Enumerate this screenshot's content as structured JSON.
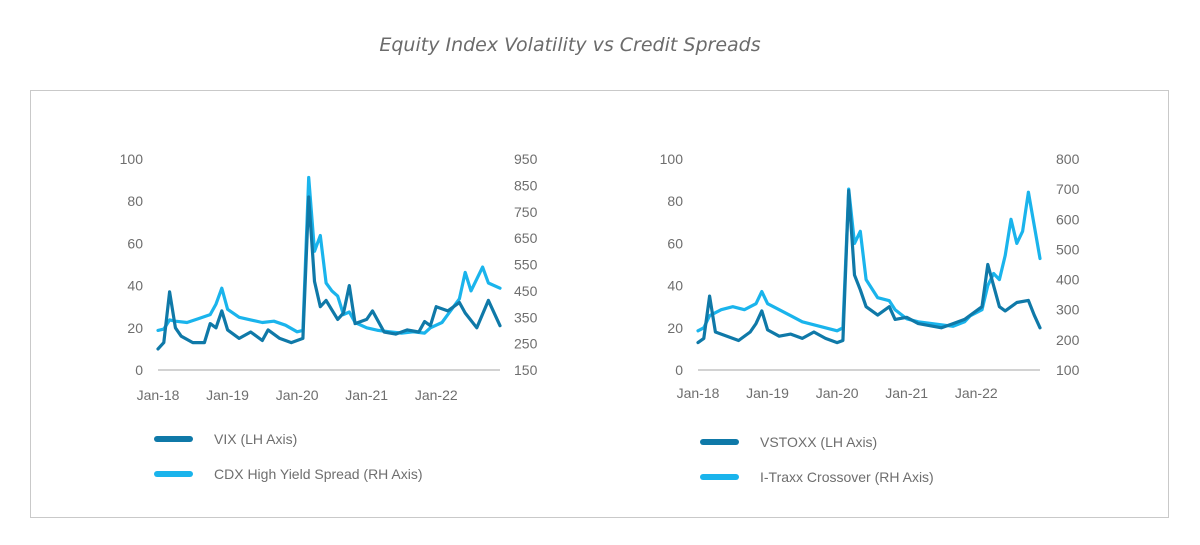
{
  "title": "Equity Index Volatility vs Credit Spreads",
  "colors": {
    "dark_series": "#0f79a8",
    "light_series": "#1ab4ec",
    "axis": "#c4c4c4",
    "text": "#6e6e6e"
  },
  "chart_data": [
    {
      "type": "line",
      "x_ticks": [
        "Jan-18",
        "Jan-19",
        "Jan-20",
        "Jan-21",
        "Jan-22"
      ],
      "y_left_ticks": [
        "0",
        "20",
        "40",
        "60",
        "80",
        "100"
      ],
      "y_right_ticks": [
        "150",
        "250",
        "350",
        "450",
        "550",
        "650",
        "750",
        "850",
        "950"
      ],
      "ylim_left": [
        0,
        100
      ],
      "ylim_right": [
        150,
        950
      ],
      "x_range": [
        "Jan-18",
        "Dec-22"
      ],
      "series": [
        {
          "name": "VIX (LH Axis)",
          "axis": "left",
          "color": "#0f79a8",
          "x": [
            "Jan-18",
            "Feb-18",
            "Mar-18",
            "Apr-18",
            "May-18",
            "Jul-18",
            "Sep-18",
            "Oct-18",
            "Nov-18",
            "Dec-18",
            "Jan-19",
            "Mar-19",
            "May-19",
            "Jul-19",
            "Aug-19",
            "Oct-19",
            "Dec-19",
            "Feb-20",
            "Mar-20",
            "Apr-20",
            "May-20",
            "Jun-20",
            "Aug-20",
            "Sep-20",
            "Oct-20",
            "Nov-20",
            "Jan-21",
            "Feb-21",
            "Apr-21",
            "Jun-21",
            "Aug-21",
            "Oct-21",
            "Nov-21",
            "Dec-21",
            "Jan-22",
            "Mar-22",
            "May-22",
            "Jun-22",
            "Aug-22",
            "Oct-22",
            "Dec-22"
          ],
          "y": [
            10,
            13,
            37,
            20,
            16,
            13,
            13,
            22,
            20,
            28,
            19,
            15,
            18,
            14,
            19,
            15,
            13,
            15,
            82,
            42,
            30,
            33,
            24,
            27,
            40,
            22,
            24,
            28,
            18,
            17,
            19,
            18,
            23,
            21,
            30,
            28,
            32,
            27,
            20,
            33,
            21
          ]
        },
        {
          "name": "CDX High Yield Spread (RH Axis)",
          "axis": "right",
          "color": "#1ab4ec",
          "x": [
            "Jan-18",
            "Feb-18",
            "Mar-18",
            "Apr-18",
            "Jun-18",
            "Aug-18",
            "Oct-18",
            "Nov-18",
            "Dec-18",
            "Jan-19",
            "Mar-19",
            "May-19",
            "Jul-19",
            "Sep-19",
            "Nov-19",
            "Jan-20",
            "Feb-20",
            "Mar-20",
            "Apr-20",
            "May-20",
            "Jun-20",
            "Jul-20",
            "Aug-20",
            "Sep-20",
            "Oct-20",
            "Nov-20",
            "Jan-21",
            "Mar-21",
            "May-21",
            "Jul-21",
            "Sep-21",
            "Nov-21",
            "Dec-21",
            "Feb-22",
            "Mar-22",
            "May-22",
            "Jun-22",
            "Jul-22",
            "Sep-22",
            "Oct-22",
            "Dec-22"
          ],
          "y": [
            300,
            305,
            340,
            335,
            330,
            345,
            360,
            400,
            460,
            380,
            350,
            340,
            330,
            335,
            320,
            295,
            300,
            880,
            600,
            660,
            480,
            450,
            430,
            360,
            370,
            330,
            310,
            300,
            295,
            290,
            295,
            290,
            310,
            330,
            360,
            420,
            520,
            450,
            540,
            480,
            460
          ]
        }
      ]
    },
    {
      "type": "line",
      "x_ticks": [
        "Jan-18",
        "Jan-19",
        "Jan-20",
        "Jan-21",
        "Jan-22"
      ],
      "y_left_ticks": [
        "0",
        "20",
        "40",
        "60",
        "80",
        "100"
      ],
      "y_right_ticks": [
        "100",
        "200",
        "300",
        "400",
        "500",
        "600",
        "700",
        "800"
      ],
      "ylim_left": [
        0,
        100
      ],
      "ylim_right": [
        100,
        800
      ],
      "x_range": [
        "Jan-18",
        "Dec-22"
      ],
      "series": [
        {
          "name": "VSTOXX (LH Axis)",
          "axis": "left",
          "color": "#0f79a8",
          "x": [
            "Jan-18",
            "Feb-18",
            "Mar-18",
            "Apr-18",
            "Jun-18",
            "Aug-18",
            "Oct-18",
            "Nov-18",
            "Dec-18",
            "Jan-19",
            "Mar-19",
            "May-19",
            "Jul-19",
            "Sep-19",
            "Nov-19",
            "Jan-20",
            "Feb-20",
            "Mar-20",
            "Apr-20",
            "May-20",
            "Jun-20",
            "Aug-20",
            "Oct-20",
            "Nov-20",
            "Jan-21",
            "Mar-21",
            "May-21",
            "Jul-21",
            "Sep-21",
            "Nov-21",
            "Dec-21",
            "Feb-22",
            "Mar-22",
            "May-22",
            "Jun-22",
            "Aug-22",
            "Oct-22",
            "Nov-22",
            "Dec-22"
          ],
          "y": [
            13,
            15,
            35,
            18,
            16,
            14,
            18,
            22,
            28,
            19,
            16,
            17,
            15,
            18,
            15,
            13,
            14,
            85,
            45,
            38,
            30,
            26,
            30,
            24,
            25,
            22,
            21,
            20,
            22,
            24,
            26,
            30,
            50,
            30,
            28,
            32,
            33,
            26,
            20
          ]
        },
        {
          "name": "I-Traxx Crossover (RH Axis)",
          "axis": "right",
          "color": "#1ab4ec",
          "x": [
            "Jan-18",
            "Feb-18",
            "Mar-18",
            "May-18",
            "Jul-18",
            "Sep-18",
            "Nov-18",
            "Dec-18",
            "Jan-19",
            "Mar-19",
            "May-19",
            "Jul-19",
            "Sep-19",
            "Nov-19",
            "Jan-20",
            "Feb-20",
            "Mar-20",
            "Apr-20",
            "May-20",
            "Jun-20",
            "Aug-20",
            "Oct-20",
            "Nov-20",
            "Jan-21",
            "Mar-21",
            "May-21",
            "Jul-21",
            "Sep-21",
            "Nov-21",
            "Dec-21",
            "Feb-22",
            "Mar-22",
            "Apr-22",
            "May-22",
            "Jun-22",
            "Jul-22",
            "Aug-22",
            "Sep-22",
            "Oct-22",
            "Nov-22",
            "Dec-22"
          ],
          "y": [
            230,
            240,
            280,
            300,
            310,
            300,
            320,
            360,
            320,
            300,
            280,
            260,
            250,
            240,
            230,
            240,
            700,
            520,
            560,
            400,
            340,
            330,
            300,
            270,
            260,
            255,
            250,
            245,
            260,
            280,
            300,
            380,
            420,
            400,
            480,
            600,
            520,
            560,
            690,
            580,
            470
          ]
        }
      ]
    }
  ]
}
